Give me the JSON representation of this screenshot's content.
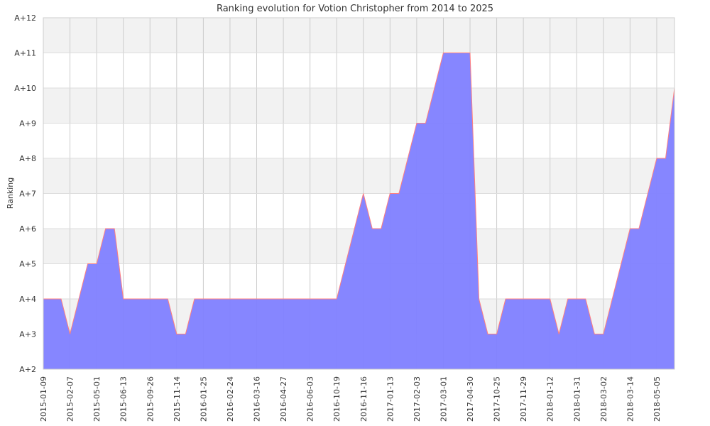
{
  "chart_data": {
    "type": "area",
    "title": "Ranking evolution for Votion Christopher from 2014 to 2025",
    "xlabel": "",
    "ylabel": "Ranking",
    "y_tick_labels": [
      "A+2",
      "A+3",
      "A+4",
      "A+5",
      "A+6",
      "A+7",
      "A+8",
      "A+9",
      "A+10",
      "A+11",
      "A+12"
    ],
    "ylim": [
      2,
      12
    ],
    "x_tick_labels": [
      "2015-01-09",
      "2015-02-07",
      "2015-05-01",
      "2015-06-13",
      "2015-09-26",
      "2015-11-14",
      "2016-01-25",
      "2016-02-24",
      "2016-03-16",
      "2016-04-27",
      "2016-06-03",
      "2016-10-19",
      "2016-11-16",
      "2017-01-13",
      "2017-02-03",
      "2017-03-01",
      "2017-04-30",
      "2017-10-25",
      "2017-11-29",
      "2018-01-12",
      "2018-01-31",
      "2018-03-02",
      "2018-03-14",
      "2018-05-05"
    ],
    "x_tick_index": [
      0,
      3,
      6,
      9,
      12,
      15,
      18,
      21,
      24,
      27,
      30,
      33,
      36,
      39,
      42,
      45,
      48,
      51,
      54,
      57,
      60,
      63,
      66,
      69
    ],
    "values": [
      4,
      4,
      4,
      3,
      4,
      5,
      5,
      6,
      6,
      4,
      4,
      4,
      4,
      4,
      4,
      3,
      3,
      4,
      4,
      4,
      4,
      4,
      4,
      4,
      4,
      4,
      4,
      4,
      4,
      4,
      4,
      4,
      4,
      4,
      5,
      6,
      7,
      6,
      6,
      7,
      7,
      8,
      9,
      9,
      10,
      11,
      11,
      11,
      11,
      4,
      3,
      3,
      4,
      4,
      4,
      4,
      4,
      4,
      3,
      4,
      4,
      4,
      3,
      3,
      4,
      5,
      6,
      6,
      7,
      8,
      8,
      10
    ],
    "grid": true,
    "legend": "none",
    "colors": {
      "fill": "#7f7fff",
      "line": "#ff7f7f",
      "band": "#f2f2f2",
      "grid": "#cccccc"
    }
  }
}
